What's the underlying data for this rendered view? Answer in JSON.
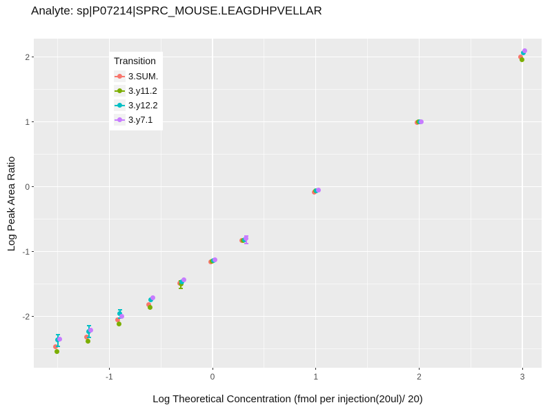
{
  "chart_title": "Analyte: sp|P07214|SPRC_MOUSE.LEAGDHPVELLAR",
  "chart_data": {
    "type": "scatter",
    "title": "Analyte: sp|P07214|SPRC_MOUSE.LEAGDHPVELLAR",
    "xlabel": "Log Theoretical Concentration (fmol per injection(20ul)/ 20)",
    "ylabel": "Log Peak Area Ratio",
    "xlim": [
      -1.73,
      3.186
    ],
    "ylim": [
      -2.79,
      2.284
    ],
    "x_ticks": [
      -1,
      0,
      1,
      2,
      3
    ],
    "y_ticks": [
      -2,
      -1,
      0,
      1,
      2
    ],
    "x_minor_ticks": [
      -1.5,
      -0.5,
      0.5,
      1.5,
      2.5
    ],
    "y_minor_ticks": [
      -2.5,
      -1.5,
      -0.5,
      0.5,
      1.5
    ],
    "panel_bg": "#EBEBEB",
    "grid_color": "#FFFFFF",
    "grid": "major+minor",
    "legend": {
      "title": "Transition",
      "position": "top-left-inset"
    },
    "series": [
      {
        "name": "3.SUM.",
        "color": "#F8766D",
        "points": [
          {
            "x": -1.505,
            "y": -2.47
          },
          {
            "x": -1.204,
            "y": -2.32
          },
          {
            "x": -0.903,
            "y": -2.05
          },
          {
            "x": -0.602,
            "y": -1.82
          },
          {
            "x": -0.301,
            "y": -1.49
          },
          {
            "x": 0,
            "y": -1.16
          },
          {
            "x": 0.301,
            "y": -0.83
          },
          {
            "x": 1,
            "y": -0.08
          },
          {
            "x": 2,
            "y": 0.99
          },
          {
            "x": 3,
            "y": 2.0
          }
        ]
      },
      {
        "name": "3.y11.2",
        "color": "#7CAE00",
        "points": [
          {
            "x": -1.505,
            "y": -2.54
          },
          {
            "x": -1.204,
            "y": -2.38
          },
          {
            "x": -0.903,
            "y": -2.11
          },
          {
            "x": -0.602,
            "y": -1.86
          },
          {
            "x": -0.301,
            "y": -1.5,
            "ymin": -1.57,
            "ymax": -1.45
          },
          {
            "x": 0,
            "y": -1.15
          },
          {
            "x": 0.301,
            "y": -0.83
          },
          {
            "x": 1,
            "y": -0.06
          },
          {
            "x": 2,
            "y": 1.0
          },
          {
            "x": 3,
            "y": 1.96
          }
        ]
      },
      {
        "name": "3.y12.2",
        "color": "#00BFC4",
        "points": [
          {
            "x": -1.505,
            "y": -2.36,
            "ymin": -2.46,
            "ymax": -2.28
          },
          {
            "x": -1.204,
            "y": -2.23,
            "ymin": -2.32,
            "ymax": -2.14
          },
          {
            "x": -0.903,
            "y": -1.96,
            "ymin": -2.02,
            "ymax": -1.9
          },
          {
            "x": -0.602,
            "y": -1.74
          },
          {
            "x": -0.301,
            "y": -1.47
          },
          {
            "x": 0,
            "y": -1.14
          },
          {
            "x": 0.301,
            "y": -0.82
          },
          {
            "x": 1,
            "y": -0.06
          },
          {
            "x": 2,
            "y": 1.0
          },
          {
            "x": 3,
            "y": 2.07
          }
        ]
      },
      {
        "name": "3.y7.1",
        "color": "#C77CFF",
        "points": [
          {
            "x": -1.505,
            "y": -2.35
          },
          {
            "x": -1.204,
            "y": -2.21
          },
          {
            "x": -0.903,
            "y": -2.0
          },
          {
            "x": -0.602,
            "y": -1.71
          },
          {
            "x": -0.301,
            "y": -1.43
          },
          {
            "x": 0,
            "y": -1.12
          },
          {
            "x": 0.301,
            "y": -0.8,
            "ymin": -0.87,
            "ymax": -0.76
          },
          {
            "x": 1,
            "y": -0.05
          },
          {
            "x": 2,
            "y": 1.0
          },
          {
            "x": 3,
            "y": 2.1
          }
        ]
      }
    ]
  }
}
